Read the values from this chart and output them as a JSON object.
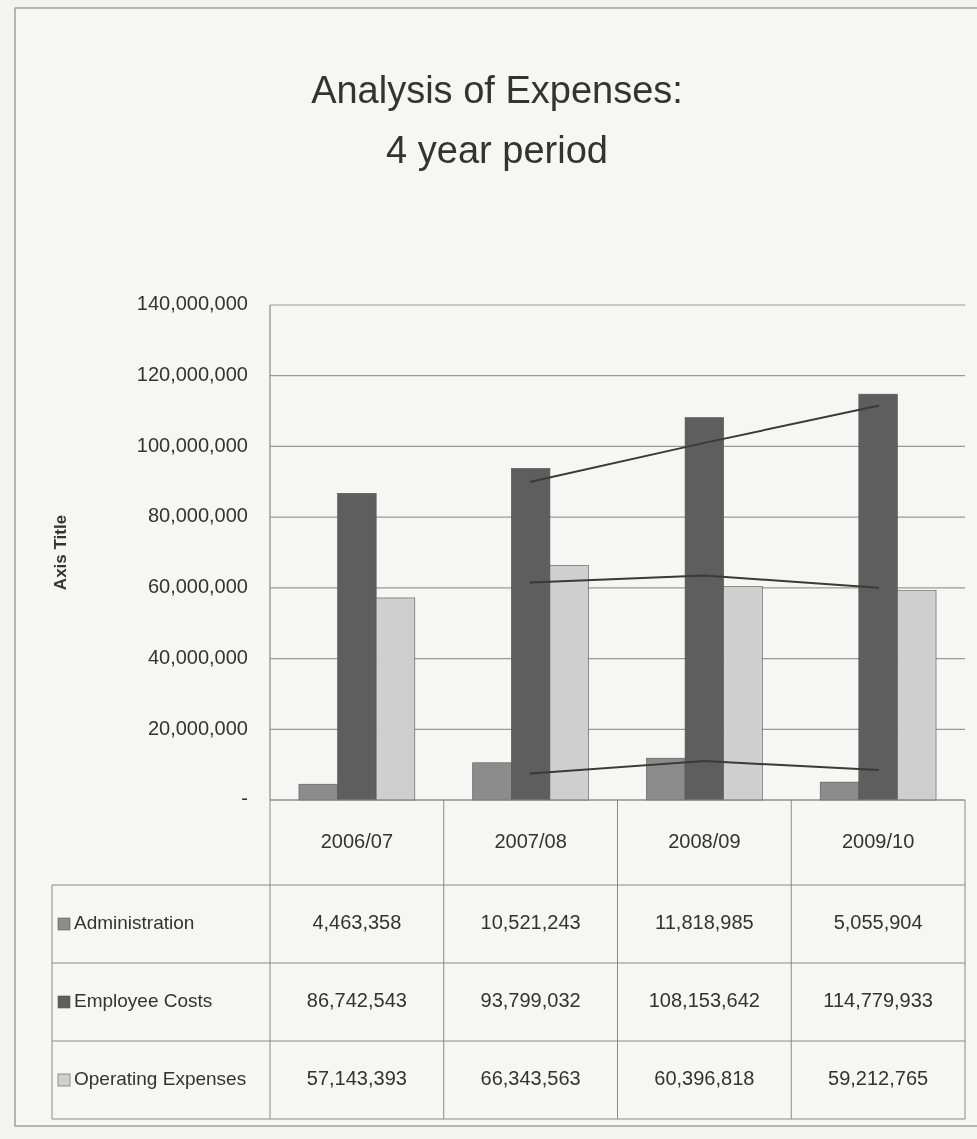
{
  "chart_data": {
    "type": "bar",
    "title": "Analysis of Expenses:\n4 year period",
    "ylabel": "Axis Title",
    "categories": [
      "2006/07",
      "2007/08",
      "2008/09",
      "2009/10"
    ],
    "series": [
      {
        "name": "Administration",
        "color": "#8c8c8c",
        "values": [
          4463358,
          10521243,
          11818985,
          5055904
        ],
        "value_labels": [
          "4,463,358",
          "10,521,243",
          "11,818,985",
          "5,055,904"
        ]
      },
      {
        "name": "Employee Costs",
        "color": "#5e5e5e",
        "values": [
          86742543,
          93799032,
          108153642,
          114779933
        ],
        "value_labels": [
          "86,742,543",
          "93,799,032",
          "108,153,642",
          "114,779,933"
        ]
      },
      {
        "name": "Operating Expenses",
        "color": "#cfcfcf",
        "values": [
          57143393,
          66343563,
          60396818,
          59212765
        ],
        "value_labels": [
          "57,143,393",
          "66,343,563",
          "60,396,818",
          "59,212,765"
        ]
      },
      {
        "type": "line",
        "color": "#3a3a3a",
        "x": [
          "2007/08",
          "2008/09",
          "2009/10"
        ],
        "values": [
          7500000,
          11000000,
          8500000
        ]
      },
      {
        "type": "line",
        "color": "#3a3a3a",
        "x": [
          "2007/08",
          "2008/09",
          "2009/10"
        ],
        "values": [
          90000000,
          101000000,
          111500000
        ]
      },
      {
        "type": "line",
        "color": "#3a3a3a",
        "x": [
          "2007/08",
          "2008/09",
          "2009/10"
        ],
        "values": [
          61500000,
          63500000,
          60000000
        ]
      }
    ],
    "ylim": [
      0,
      140000000
    ],
    "yticks": [
      {
        "value": 0,
        "label": "-"
      },
      {
        "value": 20000000,
        "label": "20,000,000"
      },
      {
        "value": 40000000,
        "label": "40,000,000"
      },
      {
        "value": 60000000,
        "label": "60,000,000"
      },
      {
        "value": 80000000,
        "label": "80,000,000"
      },
      {
        "value": 100000000,
        "label": "100,000,000"
      },
      {
        "value": 120000000,
        "label": "120,000,000"
      },
      {
        "value": 140000000,
        "label": "140,000,000"
      }
    ],
    "grid": "y",
    "legend": "bottom left"
  }
}
